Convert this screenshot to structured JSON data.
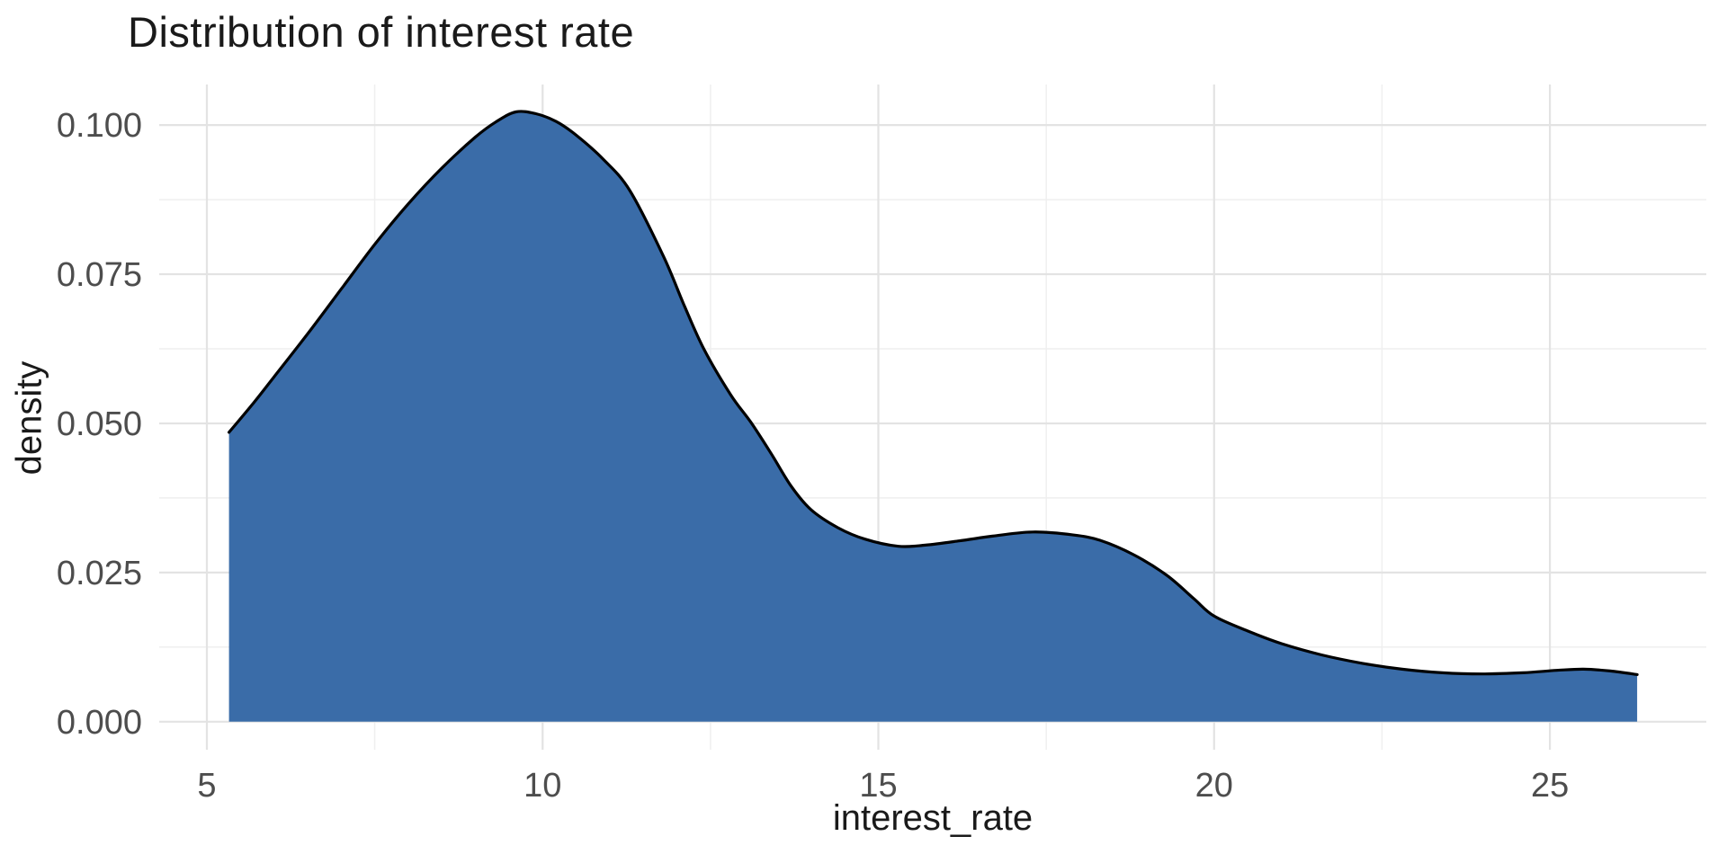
{
  "title": "Distribution of interest rate",
  "colors": {
    "area_fill": "#3A6CA8",
    "curve_stroke": "#000000",
    "grid_major": "#E3E3E3",
    "grid_minor": "#EFEFEF",
    "tick_text": "#4D4D4D",
    "title_text": "#1A1A1A",
    "background": "#FFFFFF"
  },
  "chart_data": {
    "type": "area",
    "subtype": "density-curve",
    "title": "Distribution of interest rate",
    "xlabel": "interest_rate",
    "ylabel": "density",
    "xlim": [
      4.29,
      27.33
    ],
    "ylim": [
      -0.0047,
      0.1068
    ],
    "x_tick_values": [
      5,
      10,
      15,
      20,
      25
    ],
    "x_tick_labels": [
      "5",
      "10",
      "15",
      "20",
      "25"
    ],
    "x_minor_tick_values": [
      7.5,
      12.5,
      17.5,
      22.5
    ],
    "y_tick_values": [
      0,
      0.025,
      0.05,
      0.075,
      0.1
    ],
    "y_tick_labels": [
      "0.000",
      "0.025",
      "0.050",
      "0.075",
      "0.100"
    ],
    "y_minor_tick_values": [
      0.0125,
      0.0375,
      0.0625,
      0.0875
    ],
    "grid": "major+minor, light gray on white, no axis lines",
    "legend": "none",
    "series": [
      {
        "name": "density of interest_rate",
        "fill": "#3A6CA8",
        "stroke": "#000000",
        "peak": {
          "x": 9.6,
          "y": 0.1022
        },
        "local_min": {
          "x": 15.3,
          "y": 0.0294
        },
        "secondary_bump": {
          "x": 17.3,
          "y": 0.0318
        },
        "points": [
          [
            5.33,
            0.0485
          ],
          [
            5.7,
            0.0535
          ],
          [
            6.0,
            0.0578
          ],
          [
            6.5,
            0.065
          ],
          [
            7.0,
            0.0725
          ],
          [
            7.5,
            0.08
          ],
          [
            8.0,
            0.0868
          ],
          [
            8.5,
            0.0928
          ],
          [
            9.0,
            0.098
          ],
          [
            9.3,
            0.1005
          ],
          [
            9.6,
            0.1022
          ],
          [
            9.9,
            0.1019
          ],
          [
            10.2,
            0.1006
          ],
          [
            10.5,
            0.0983
          ],
          [
            10.9,
            0.0943
          ],
          [
            11.3,
            0.089
          ],
          [
            11.8,
            0.078
          ],
          [
            12.1,
            0.07
          ],
          [
            12.4,
            0.0625
          ],
          [
            12.8,
            0.0548
          ],
          [
            13.1,
            0.0502
          ],
          [
            13.4,
            0.045
          ],
          [
            13.7,
            0.0395
          ],
          [
            14.0,
            0.0355
          ],
          [
            14.4,
            0.0325
          ],
          [
            14.8,
            0.0306
          ],
          [
            15.3,
            0.0294
          ],
          [
            15.7,
            0.0296
          ],
          [
            16.2,
            0.0303
          ],
          [
            16.7,
            0.0311
          ],
          [
            17.3,
            0.0318
          ],
          [
            17.9,
            0.0313
          ],
          [
            18.3,
            0.0304
          ],
          [
            18.8,
            0.028
          ],
          [
            19.3,
            0.0245
          ],
          [
            19.7,
            0.0206
          ],
          [
            20.0,
            0.0177
          ],
          [
            20.5,
            0.0152
          ],
          [
            21.0,
            0.0131
          ],
          [
            21.6,
            0.0112
          ],
          [
            22.2,
            0.0098
          ],
          [
            22.8,
            0.0088
          ],
          [
            23.4,
            0.0082
          ],
          [
            24.0,
            0.008
          ],
          [
            24.6,
            0.0082
          ],
          [
            25.1,
            0.0086
          ],
          [
            25.5,
            0.0088
          ],
          [
            25.9,
            0.0085
          ],
          [
            26.3,
            0.0079
          ]
        ]
      }
    ]
  }
}
